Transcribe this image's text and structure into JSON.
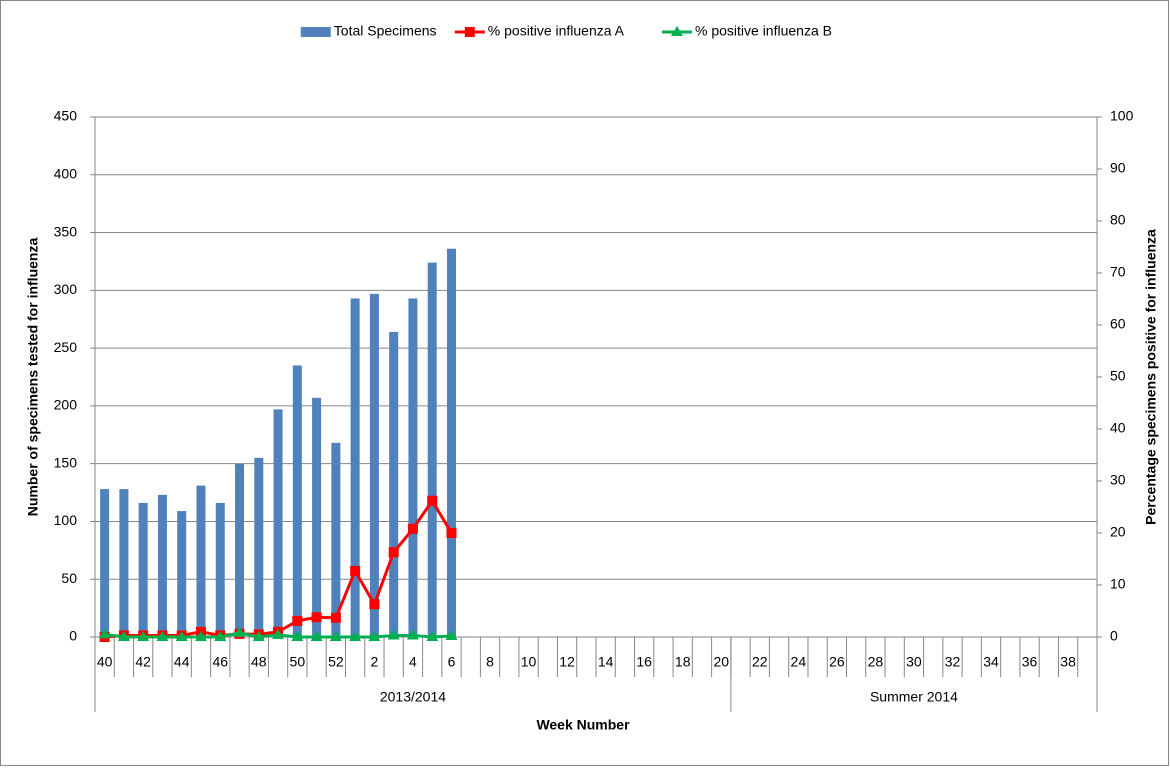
{
  "chart_data": {
    "type": "bar-line",
    "x_label": "Week Number",
    "y_label": "Number of specimens tested for influenza",
    "y2_label": "Percentage specimens positive for influenza",
    "categories": [
      "40",
      null,
      "42",
      null,
      "44",
      null,
      "46",
      null,
      "48",
      null,
      "50",
      null,
      "52",
      null,
      "2",
      null,
      "4",
      null,
      "6",
      null,
      "8",
      null,
      "10",
      null,
      "12",
      null,
      "14",
      null,
      "16",
      null,
      "18",
      null,
      "20",
      null,
      "22",
      null,
      "24",
      null,
      "26",
      null,
      "28",
      null,
      "30",
      null,
      "32",
      null,
      "34",
      null,
      "36",
      null,
      "38",
      null
    ],
    "groups": [
      {
        "label": "2013/2014",
        "span": 33
      },
      {
        "label": "Summer 2014",
        "span": 19
      }
    ],
    "series": [
      {
        "name": "Total Specimens",
        "type": "bar",
        "color": "#4f81bd",
        "values": [
          128,
          128,
          116,
          123,
          109,
          131,
          116,
          150,
          155,
          197,
          235,
          207,
          168,
          293,
          297,
          264,
          293,
          324,
          336,
          null,
          null,
          null,
          null,
          null,
          null,
          null,
          null,
          null,
          null,
          null,
          null,
          null,
          null,
          null,
          null,
          null,
          null,
          null,
          null,
          null,
          null,
          null,
          null,
          null,
          null,
          null,
          null,
          null,
          null,
          null,
          null,
          null
        ]
      },
      {
        "name": "% positive influenza A",
        "type": "line",
        "marker": "square",
        "axis": "y2",
        "color": "#ff0000",
        "values": [
          0,
          0.3,
          0.3,
          0.3,
          0.3,
          1,
          0.3,
          0.6,
          0.5,
          1.0,
          3.1,
          3.8,
          3.7,
          12.7,
          6.3,
          16.3,
          20.8,
          26.2,
          20.0,
          null,
          null,
          null,
          null,
          null,
          null,
          null,
          null,
          null,
          null,
          null,
          null,
          null,
          null,
          null,
          null,
          null,
          null,
          null,
          null,
          null,
          null,
          null,
          null,
          null,
          null,
          null,
          null,
          null,
          null,
          null,
          null,
          null
        ]
      },
      {
        "name": "% positive influenza B",
        "type": "line",
        "marker": "triangle",
        "axis": "y2",
        "color": "#00b050",
        "values": [
          0.5,
          0,
          0,
          0,
          0,
          0,
          0,
          0.8,
          0,
          0.4,
          0,
          0,
          0,
          0,
          0,
          0.3,
          0.3,
          0,
          0.2,
          null,
          null,
          null,
          null,
          null,
          null,
          null,
          null,
          null,
          null,
          null,
          null,
          null,
          null,
          null,
          null,
          null,
          null,
          null,
          null,
          null,
          null,
          null,
          null,
          null,
          null,
          null,
          null,
          null,
          null,
          null,
          null,
          null
        ]
      }
    ],
    "ylim": [
      0,
      450
    ],
    "yticks": [
      0,
      50,
      100,
      150,
      200,
      250,
      300,
      350,
      400,
      450
    ],
    "y2lim": [
      0,
      100
    ],
    "y2ticks": [
      0,
      10,
      20,
      30,
      40,
      50,
      60,
      70,
      80,
      90,
      100
    ],
    "grid": true,
    "legend": "top"
  }
}
